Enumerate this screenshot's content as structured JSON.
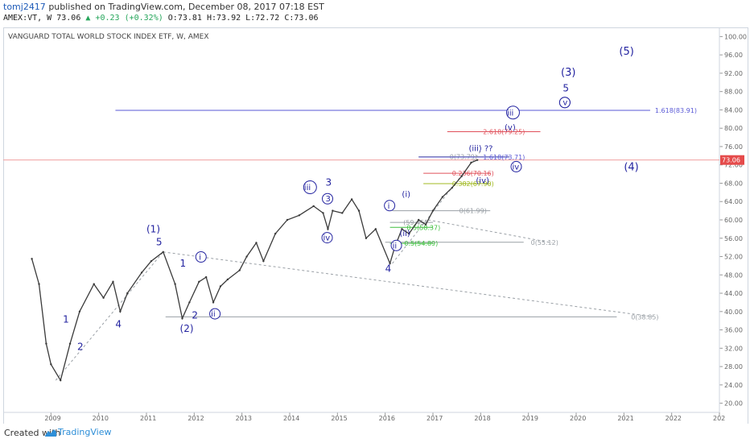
{
  "header": {
    "author": "tomj2417",
    "published_text": "published on TradingView.com, December 08, 2017 07:18 EST",
    "ticker": "AMEX:VT, W",
    "last": "73.06",
    "change": "+0.23 (+0.32%)",
    "open": "O:73.81",
    "high": "H:73.92",
    "low": "L:72.72",
    "close": "C:73.06"
  },
  "chart_data": {
    "type": "line",
    "title": "VANGUARD TOTAL WORLD STOCK INDEX ETF, W, AMEX",
    "x_tick_labels": [
      "2009",
      "2010",
      "2011",
      "2012",
      "2013",
      "2014",
      "2015",
      "2016",
      "2017",
      "2018",
      "2019",
      "2020",
      "2021",
      "2022",
      "202"
    ],
    "y_tick_labels": [
      "20.00",
      "24.00",
      "28.00",
      "32.00",
      "36.00",
      "40.00",
      "44.00",
      "48.00",
      "52.00",
      "56.00",
      "60.00",
      "64.00",
      "68.00",
      "72.00",
      "76.00",
      "80.00",
      "84.00",
      "88.00",
      "92.00",
      "96.00",
      "100.00"
    ],
    "ylim": [
      18,
      102
    ],
    "xlim": [
      2008.0,
      2023.0
    ],
    "current_price_label": "73.06",
    "series": [
      {
        "x": [
          2008.6,
          2008.75,
          2008.9,
          2009.0,
          2009.2,
          2009.4,
          2009.6,
          2009.9,
          2010.1,
          2010.3,
          2010.45,
          2010.6,
          2010.9,
          2011.1,
          2011.35,
          2011.6,
          2011.75,
          2011.9,
          2012.1,
          2012.25,
          2012.4,
          2012.55,
          2012.7,
          2012.95,
          2013.1,
          2013.3,
          2013.45,
          2013.7,
          2013.95,
          2014.2,
          2014.5,
          2014.7,
          2014.8,
          2014.9,
          2015.1,
          2015.3,
          2015.45,
          2015.6,
          2015.8,
          2016.1,
          2016.2,
          2016.35,
          2016.5,
          2016.7,
          2016.85,
          2017.0,
          2017.2,
          2017.4,
          2017.6,
          2017.8,
          2017.93
        ],
        "y": [
          51.5,
          46.0,
          33.0,
          28.5,
          25.0,
          33.0,
          40.0,
          46.0,
          43.0,
          46.5,
          40.0,
          44.0,
          48.5,
          51.0,
          53.0,
          46.0,
          38.5,
          42.0,
          46.5,
          47.5,
          42.0,
          45.5,
          47.0,
          49.0,
          52.0,
          55.0,
          51.0,
          57.0,
          60.0,
          61.0,
          63.0,
          61.5,
          58.0,
          62.0,
          61.5,
          64.5,
          62.0,
          56.0,
          58.0,
          50.5,
          54.0,
          58.0,
          57.0,
          60.0,
          59.0,
          62.0,
          65.0,
          67.0,
          69.5,
          72.5,
          73.06
        ]
      }
    ],
    "levels": [
      {
        "label": "1.618(83.91)",
        "value": 83.91,
        "color": "#5a5ad6"
      },
      {
        "label": "2.618(79.25)",
        "value": 79.25,
        "color": "#e0505a"
      },
      {
        "label": "0(73.79)",
        "value": 73.79,
        "color": "#9aa0a6"
      },
      {
        "label": "1.618(73.71)",
        "value": 73.71,
        "color": "#5a5ad6"
      },
      {
        "label": "0.236(70.16)",
        "value": 70.16,
        "color": "#e0505a"
      },
      {
        "label": "0.382(67.90)",
        "value": 67.9,
        "color": "#a0b820"
      },
      {
        "label": "0(61.99)",
        "value": 61.99,
        "color": "#9aa0a6"
      },
      {
        "label": "(59.45)",
        "value": 59.45,
        "color": "#9aa0a6"
      },
      {
        "label": "0.5(58.37)",
        "value": 58.37,
        "color": "#3fbf3f"
      },
      {
        "label": "0(55.12)",
        "value": 55.12,
        "color": "#9aa0a6"
      },
      {
        "label": "0.5(54.89)",
        "value": 54.89,
        "color": "#3fbf3f"
      },
      {
        "label": "0(38.85)",
        "value": 38.85,
        "color": "#9aa0a6"
      }
    ],
    "annotations": [
      "(5)",
      "(3)",
      "5",
      "v",
      "iii",
      "(v)",
      "(iii) ??",
      "iv",
      "(4)",
      "(iv)",
      "3",
      "v",
      "iii",
      "iv",
      "i",
      "(i)",
      "(ii)",
      "ii",
      "4",
      "(1)",
      "5",
      "1",
      "i",
      "ii",
      "2",
      "(2)",
      "3",
      "1",
      "2",
      "4"
    ]
  },
  "footer": {
    "created_with": "Created with",
    "brand": "TradingView"
  }
}
